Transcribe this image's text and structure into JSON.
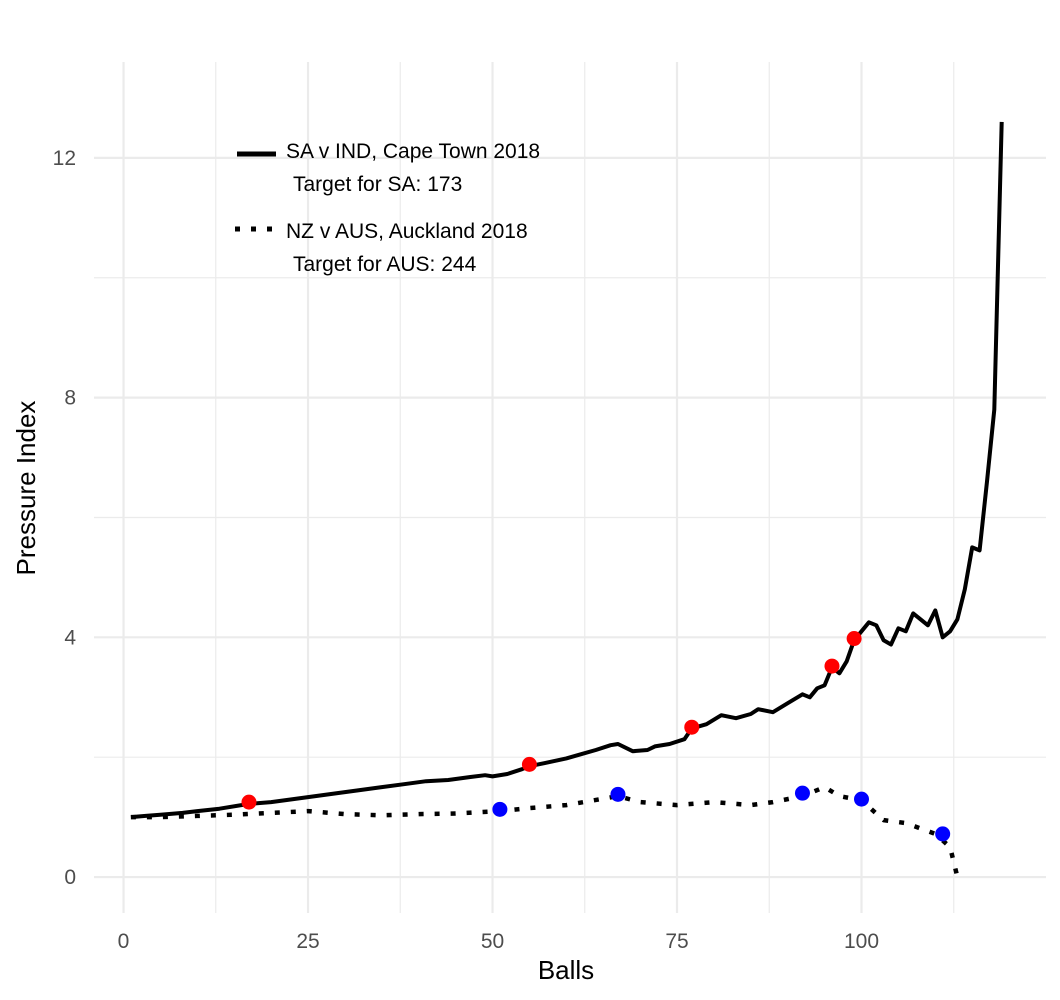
{
  "chart_data": {
    "type": "line",
    "title": "",
    "xlabel": "Balls",
    "ylabel": "Pressure Index",
    "xlim": [
      -4,
      125
    ],
    "ylim": [
      -0.6,
      13.6
    ],
    "x_ticks": [
      0,
      25,
      50,
      75,
      100
    ],
    "x_tick_labels": [
      "0",
      "25",
      "50",
      "75",
      "100"
    ],
    "y_ticks": [
      0,
      4,
      8,
      12
    ],
    "y_tick_labels": [
      "0",
      "4",
      "8",
      "12"
    ],
    "grid": true,
    "legend_position": "top-left inside plot",
    "legend": [
      {
        "series": "sa",
        "style": "solid",
        "line1": "SA v IND, Cape Town 2018",
        "line2": "Target for SA: 173"
      },
      {
        "series": "aus",
        "style": "dotted",
        "line1": "NZ v AUS, Auckland 2018",
        "line2": "Target for AUS: 244"
      }
    ],
    "series": [
      {
        "key": "sa",
        "style": "solid",
        "color": "#000000",
        "x": [
          1,
          3,
          5,
          8,
          10,
          13,
          17,
          20,
          23,
          26,
          29,
          32,
          35,
          38,
          41,
          44,
          47,
          49,
          50,
          52,
          54,
          55,
          57,
          60,
          62,
          64,
          66,
          67,
          69,
          71,
          72,
          74,
          76,
          77,
          79,
          81,
          83,
          85,
          86,
          88,
          90,
          92,
          93,
          94,
          95,
          96,
          97,
          98,
          99,
          100,
          101,
          102,
          103,
          104,
          105,
          106,
          107,
          108,
          109,
          110,
          111,
          112,
          113,
          114,
          115,
          116,
          117,
          118,
          119
        ],
        "y": [
          1.0,
          1.02,
          1.04,
          1.07,
          1.1,
          1.14,
          1.22,
          1.25,
          1.3,
          1.35,
          1.4,
          1.45,
          1.5,
          1.55,
          1.6,
          1.62,
          1.67,
          1.7,
          1.68,
          1.72,
          1.8,
          1.85,
          1.9,
          1.98,
          2.05,
          2.12,
          2.2,
          2.22,
          2.1,
          2.12,
          2.18,
          2.22,
          2.3,
          2.48,
          2.55,
          2.7,
          2.65,
          2.72,
          2.8,
          2.75,
          2.9,
          3.05,
          3.0,
          3.15,
          3.2,
          3.5,
          3.4,
          3.6,
          3.95,
          4.1,
          4.25,
          4.2,
          3.95,
          3.88,
          4.15,
          4.1,
          4.4,
          4.3,
          4.2,
          4.45,
          4.0,
          4.1,
          4.3,
          4.8,
          5.5,
          5.45,
          6.6,
          7.8,
          12.6
        ]
      },
      {
        "key": "aus",
        "style": "dotted",
        "color": "#000000",
        "x": [
          1,
          5,
          10,
          15,
          20,
          25,
          30,
          35,
          40,
          45,
          51,
          55,
          60,
          67,
          70,
          75,
          80,
          85,
          88,
          92,
          95,
          97,
          100,
          103,
          106,
          110,
          112,
          113
        ],
        "y": [
          1.0,
          1.0,
          1.02,
          1.04,
          1.07,
          1.1,
          1.05,
          1.03,
          1.05,
          1.06,
          1.1,
          1.15,
          1.2,
          1.35,
          1.25,
          1.2,
          1.25,
          1.2,
          1.25,
          1.35,
          1.5,
          1.35,
          1.28,
          0.95,
          0.9,
          0.72,
          0.5,
          0.0
        ]
      }
    ],
    "wickets": [
      {
        "series": "sa",
        "color": "#ff0000",
        "x": [
          17,
          55,
          77,
          96,
          99
        ],
        "y": [
          1.25,
          1.88,
          2.5,
          3.52,
          3.98
        ]
      },
      {
        "series": "aus",
        "color": "#0000ff",
        "x": [
          51,
          67,
          92,
          100,
          111
        ],
        "y": [
          1.13,
          1.38,
          1.4,
          1.3,
          0.72
        ]
      }
    ],
    "colors": {
      "grid": "#ebebeb",
      "line": "#000000",
      "sa_wicket": "#ff0000",
      "aus_wicket": "#0000ff",
      "background": "#ffffff"
    }
  }
}
